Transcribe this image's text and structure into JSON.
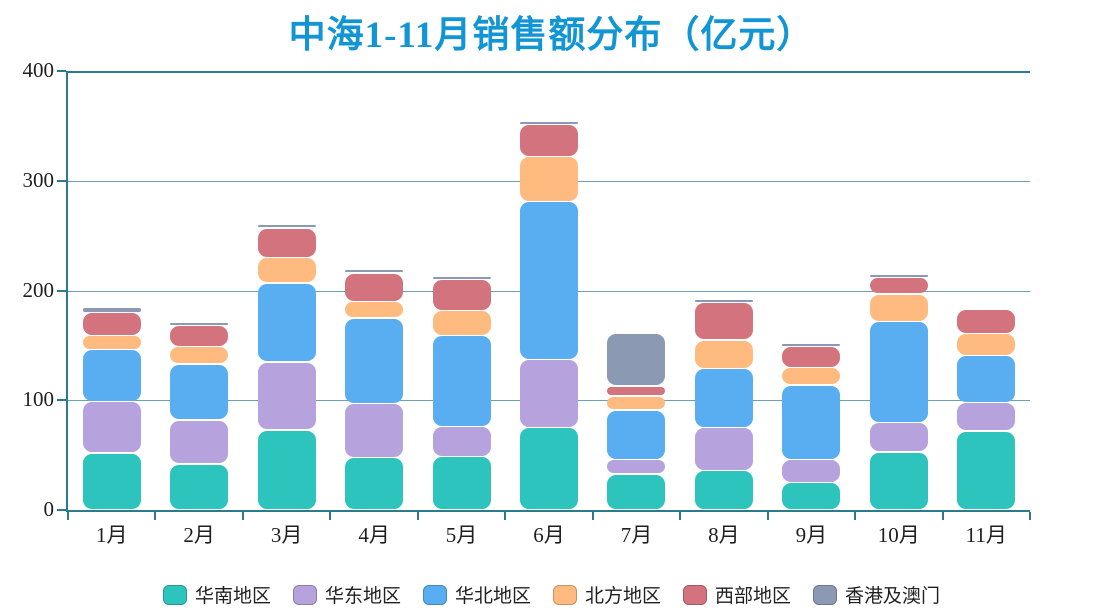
{
  "colors": {
    "title": "#1295D5",
    "axis": "#2B7A8E",
    "grid": "#6BA2B0",
    "text": "#1F1F1F",
    "background": "#FFFFFF"
  },
  "chart_data": {
    "type": "bar",
    "stacked": true,
    "title": "中海1-11月销售额分布（亿元）",
    "xlabel": "",
    "ylabel": "",
    "ylim": [
      0,
      400
    ],
    "yticks": [
      0,
      100,
      200,
      300,
      400
    ],
    "grid": true,
    "legend_position": "bottom",
    "categories": [
      "1月",
      "2月",
      "3月",
      "4月",
      "5月",
      "6月",
      "7月",
      "8月",
      "9月",
      "10月",
      "11月"
    ],
    "series": [
      {
        "name": "华南地区",
        "color": "#2EC4BE",
        "values": [
          52,
          42,
          73,
          48,
          49,
          75,
          33,
          36,
          25,
          53,
          72
        ]
      },
      {
        "name": "华东地区",
        "color": "#B6A2DC",
        "values": [
          47,
          40,
          62,
          49,
          27,
          62,
          13,
          39,
          21,
          27,
          26
        ]
      },
      {
        "name": "华北地区",
        "color": "#58AEF0",
        "values": [
          47,
          51,
          72,
          78,
          83,
          144,
          45,
          54,
          68,
          92,
          43
        ]
      },
      {
        "name": "北方地区",
        "color": "#FFBA7F",
        "values": [
          13,
          16,
          23,
          15,
          23,
          41,
          13,
          26,
          16,
          25,
          20
        ]
      },
      {
        "name": "西部地区",
        "color": "#D3737E",
        "values": [
          21,
          19,
          27,
          26,
          28,
          29,
          9,
          34,
          19,
          15,
          22
        ]
      },
      {
        "name": "香港及澳门",
        "color": "#8C99B2",
        "values": [
          5,
          2,
          2,
          2,
          3,
          2,
          48,
          2,
          1,
          1,
          0
        ]
      }
    ]
  }
}
